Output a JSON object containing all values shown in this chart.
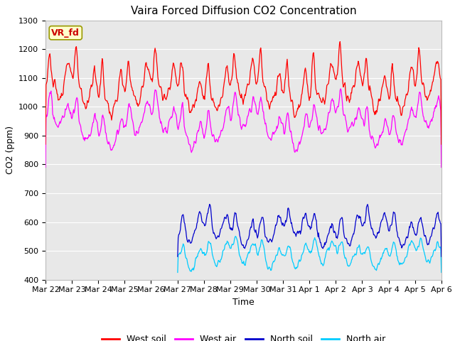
{
  "title": "Vaira Forced Diffusion CO2 Concentration",
  "xlabel": "Time",
  "ylabel": "CO2 (ppm)",
  "ylim": [
    400,
    1300
  ],
  "legend_label": "VR_fd",
  "x_tick_labels": [
    "Mar 22",
    "Mar 23",
    "Mar 24",
    "Mar 25",
    "Mar 26",
    "Mar 27",
    "Mar 28",
    "Mar 29",
    "Mar 30",
    "Mar 31",
    "Apr 1",
    "Apr 2",
    "Apr 3",
    "Apr 4",
    "Apr 5",
    "Apr 6"
  ],
  "series": {
    "west_soil": {
      "color": "#ff0000",
      "label": "West soil"
    },
    "west_air": {
      "color": "#ff00ff",
      "label": "West air"
    },
    "north_soil": {
      "color": "#0000cc",
      "label": "North soil"
    },
    "north_air": {
      "color": "#00ccff",
      "label": "North air"
    }
  },
  "background_color": "#ffffff",
  "plot_bg_color": "#e8e8e8",
  "grid_color": "#ffffff",
  "title_fontsize": 11,
  "axis_fontsize": 9,
  "tick_fontsize": 8,
  "legend_box_color": "#ffffcc",
  "legend_box_edge": "#999900",
  "legend_text_color": "#cc0000",
  "n_days": 15,
  "n_points": 720
}
